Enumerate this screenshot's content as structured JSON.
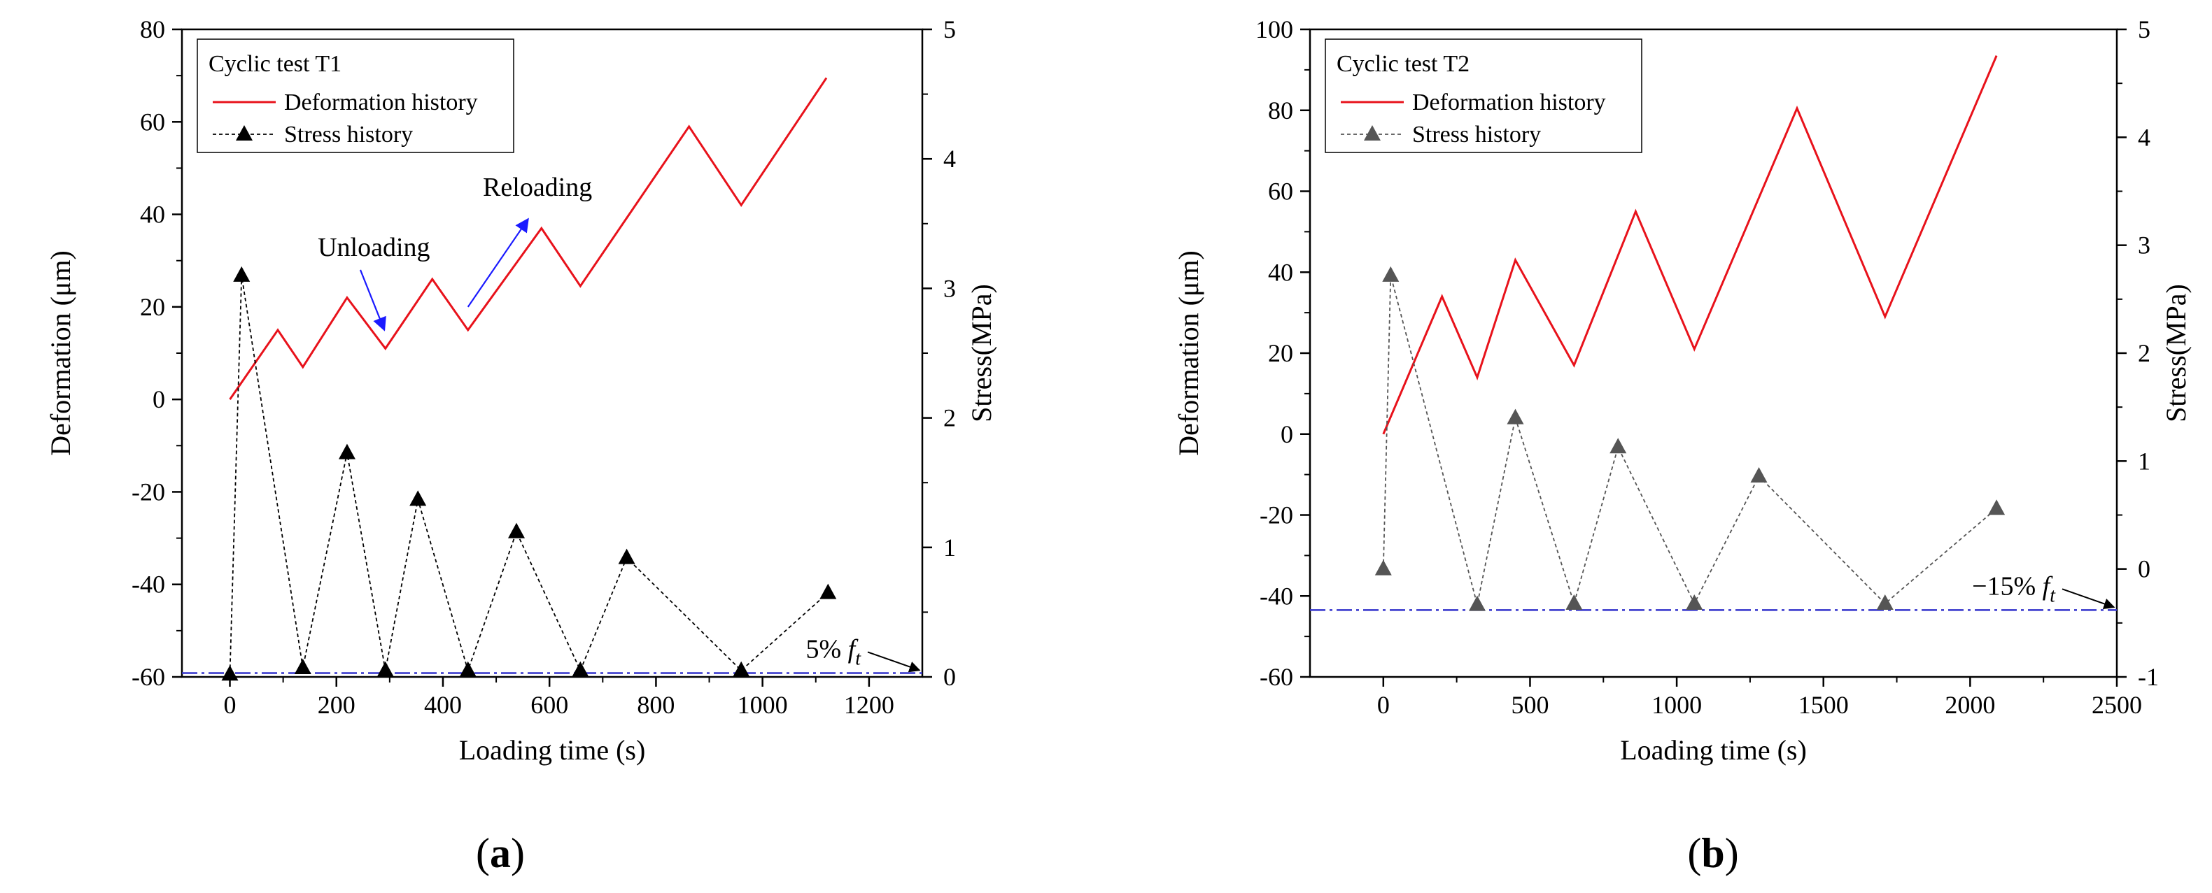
{
  "chart_data": [
    {
      "type": "line",
      "panel_label": "(a)",
      "legend_title": "Cyclic test T1",
      "legend_position": "top-left",
      "xlabel": "Loading time (s)",
      "ylabel_left": "Deformation (μm)",
      "ylabel_right": "Stress(MPa)",
      "xlim": [
        -90,
        1300
      ],
      "ylim_left": [
        -60,
        80
      ],
      "ylim_right": [
        0,
        5
      ],
      "x_ticks": [
        0,
        200,
        400,
        600,
        800,
        1000,
        1200
      ],
      "y_left_ticks": [
        -60,
        -40,
        -20,
        0,
        20,
        40,
        60,
        80
      ],
      "y_right_ticks": [
        0,
        1,
        2,
        3,
        4,
        5
      ],
      "grid": false,
      "series": [
        {
          "name": "Deformation history",
          "axis": "left",
          "color": "#e8121b",
          "style": "solid",
          "x": [
            0,
            90,
            137,
            220,
            292,
            380,
            447,
            585,
            658,
            862,
            960,
            1120
          ],
          "y": [
            0,
            15,
            7,
            22,
            11,
            26,
            15,
            37,
            24.5,
            59,
            42,
            69.5
          ]
        },
        {
          "name": "Stress history",
          "axis": "right",
          "color": "#000000",
          "style": "dashed",
          "marker": "triangle",
          "x": [
            0,
            22,
            137,
            220,
            292,
            353,
            447,
            538,
            658,
            745,
            960,
            1123
          ],
          "y": [
            0.02,
            3.1,
            0.07,
            1.73,
            0.05,
            1.37,
            0.05,
            1.12,
            0.05,
            0.92,
            0.05,
            0.65
          ]
        }
      ],
      "reference_line": {
        "label": "5% f",
        "subscript": "t",
        "value": 0.03,
        "axis": "right",
        "color": "#3333cc"
      },
      "annotations": [
        {
          "text": "Unloading",
          "x": 165,
          "y": 31,
          "arrow_from": [
            245,
            28
          ],
          "arrow_to": [
            290,
            15
          ],
          "color": "#1a1aff"
        },
        {
          "text": "Reloading",
          "x": 475,
          "y": 44,
          "arrow_from": [
            447,
            20
          ],
          "arrow_to": [
            560,
            39
          ],
          "color": "#1a1aff"
        }
      ]
    },
    {
      "type": "line",
      "panel_label": "(b)",
      "legend_title": "Cyclic test T2",
      "legend_position": "top-left",
      "xlabel": "Loading time (s)",
      "ylabel_left": "Deformation (μm)",
      "ylabel_right": "Stress(MPa)",
      "xlim": [
        -250,
        2500
      ],
      "ylim_left": [
        -60,
        100
      ],
      "ylim_right": [
        -1,
        5
      ],
      "x_ticks": [
        0,
        500,
        1000,
        1500,
        2000,
        2500
      ],
      "y_left_ticks": [
        -60,
        -40,
        -20,
        0,
        20,
        40,
        60,
        80,
        100
      ],
      "y_right_ticks": [
        -1,
        0,
        1,
        2,
        3,
        4,
        5
      ],
      "grid": false,
      "series": [
        {
          "name": "Deformation history",
          "axis": "left",
          "color": "#e8121b",
          "style": "solid",
          "x": [
            0,
            200,
            320,
            450,
            650,
            860,
            1060,
            1410,
            1710,
            2090
          ],
          "y": [
            0,
            34,
            14,
            43,
            17,
            55,
            21,
            80.5,
            29,
            93.5
          ]
        },
        {
          "name": "Stress history",
          "axis": "right",
          "color": "#555555",
          "style": "dashed",
          "marker": "triangle",
          "x": [
            0,
            25,
            320,
            450,
            650,
            800,
            1060,
            1280,
            1710,
            2090
          ],
          "y": [
            0.0,
            2.72,
            -0.33,
            1.4,
            -0.32,
            1.13,
            -0.32,
            0.86,
            -0.32,
            0.56
          ]
        }
      ],
      "reference_line": {
        "label": "−15% f",
        "subscript": "t",
        "value": -0.38,
        "axis": "right",
        "color": "#3333cc"
      },
      "annotations": []
    }
  ]
}
